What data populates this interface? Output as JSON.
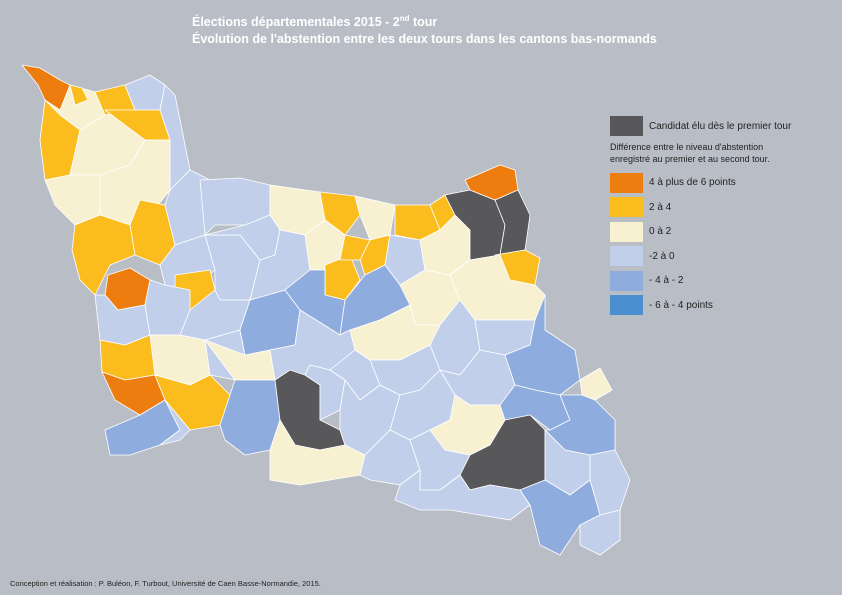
{
  "title": {
    "line1_main": "Élections départementales 2015 - 2",
    "line1_sup": "nd",
    "line1_end": " tour",
    "line2": "Évolution de l'abstention entre les deux tours dans les cantons bas-normands"
  },
  "legend": {
    "elected_first_round": {
      "label": "Candidat élu dès le premier tour",
      "color": "#58585a"
    },
    "note": "Différence entre le niveau d'abstention enregistré au premier et au second tour.",
    "classes": [
      {
        "label": "4 à plus de 6 points",
        "color": "#ee7d10"
      },
      {
        "label": "2 à 4",
        "color": "#fbbc1d"
      },
      {
        "label": "0 à 2",
        "color": "#f7f1d1"
      },
      {
        "label": "-2 à 0",
        "color": "#c1cfea"
      },
      {
        "label": "- 4 à - 2",
        "color": "#8eadde"
      },
      {
        "label": "- 6  à - 4 points",
        "color": "#4a8fd0"
      }
    ]
  },
  "credits": "Conception et réalisation : P. Buléon, F. Turbout, Université de Caen Basse-Normandie, 2015."
}
